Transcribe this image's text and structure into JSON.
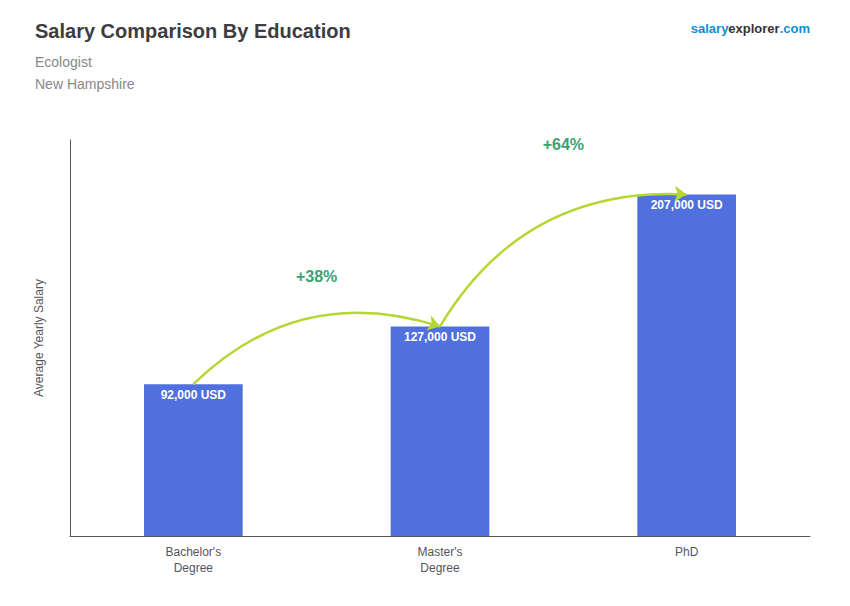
{
  "chart_data": {
    "type": "bar",
    "title": "Salary Comparison By Education",
    "subtitle": [
      "Ecologist",
      "New Hampshire"
    ],
    "categories": [
      "Bachelor's\nDegree",
      "Master's\nDegree",
      "PhD"
    ],
    "values": [
      92000,
      127000,
      207000
    ],
    "value_labels": [
      "92,000 USD",
      "127,000 USD",
      "207,000 USD"
    ],
    "data_labels": true,
    "ylabel": "Average Yearly Salary",
    "ylim": [
      0,
      240000
    ],
    "grid": false,
    "tick_labels": "x",
    "annotations": [
      {
        "text": "+38%",
        "from": "Bachelor's\nDegree",
        "to": "Master's\nDegree"
      },
      {
        "text": "+64%",
        "from": "Master's\nDegree",
        "to": "PhD"
      },
      {
        "text": "salary"
      },
      {
        "text": "explorer"
      },
      {
        "text": ".com"
      }
    ]
  }
}
